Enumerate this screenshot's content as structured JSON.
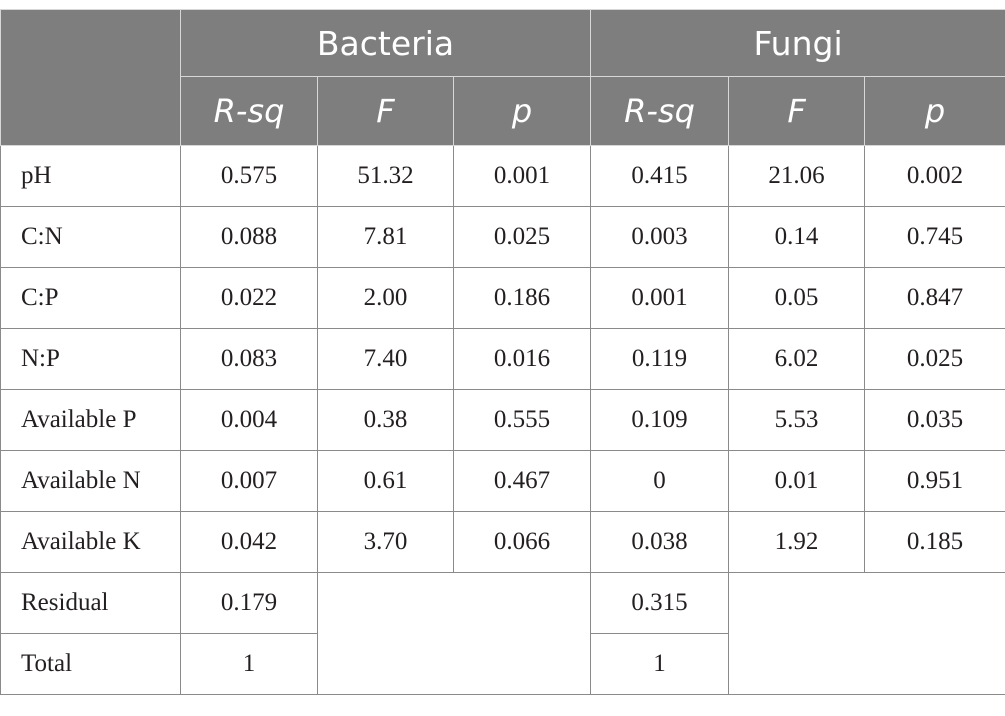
{
  "table": {
    "groups": [
      "Bacteria",
      "Fungi"
    ],
    "stat_headers": [
      "R-sq",
      "F",
      "p",
      "R-sq",
      "F",
      "p"
    ],
    "rows": [
      {
        "label": "pH",
        "values": [
          "0.575",
          "51.32",
          "0.001",
          "0.415",
          "21.06",
          "0.002"
        ]
      },
      {
        "label": "C:N",
        "values": [
          "0.088",
          "7.81",
          "0.025",
          "0.003",
          "0.14",
          "0.745"
        ]
      },
      {
        "label": "C:P",
        "values": [
          "0.022",
          "2.00",
          "0.186",
          "0.001",
          "0.05",
          "0.847"
        ]
      },
      {
        "label": "N:P",
        "values": [
          "0.083",
          "7.40",
          "0.016",
          "0.119",
          "6.02",
          "0.025"
        ]
      },
      {
        "label": "Available P",
        "values": [
          "0.004",
          "0.38",
          "0.555",
          "0.109",
          "5.53",
          "0.035"
        ]
      },
      {
        "label": "Available N",
        "values": [
          "0.007",
          "0.61",
          "0.467",
          "0",
          "0.01",
          "0.951"
        ]
      },
      {
        "label": "Available K",
        "values": [
          "0.042",
          "3.70",
          "0.066",
          "0.038",
          "1.92",
          "0.185"
        ]
      }
    ],
    "residual": {
      "label": "Residual",
      "bacteria_rsq": "0.179",
      "fungi_rsq": "0.315"
    },
    "total": {
      "label": "Total",
      "bacteria_rsq": "1",
      "fungi_rsq": "1"
    },
    "colors": {
      "header_bg": "#7d7e7d",
      "header_text": "#ffffff",
      "border": "#8a8a8a"
    }
  }
}
